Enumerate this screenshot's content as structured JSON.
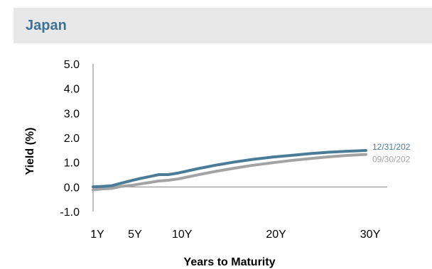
{
  "header": {
    "title": "Japan"
  },
  "colors": {
    "title": "#3e7196",
    "band": "#e8e8e8"
  },
  "chart_data": {
    "type": "line",
    "xlabel": "Years to Maturity",
    "ylabel": "Yield (%)",
    "xlim": [
      1,
      30
    ],
    "ylim": [
      -1,
      5
    ],
    "xticks": [
      {
        "v": 1,
        "label": "1Y"
      },
      {
        "v": 5,
        "label": "5Y"
      },
      {
        "v": 10,
        "label": "10Y"
      },
      {
        "v": 20,
        "label": "20Y"
      },
      {
        "v": 30,
        "label": "30Y"
      }
    ],
    "yticks": [
      {
        "v": 5,
        "label": "5.0"
      },
      {
        "v": 4,
        "label": "4.0"
      },
      {
        "v": 3,
        "label": "3.0"
      },
      {
        "v": 2,
        "label": "2.0"
      },
      {
        "v": 1,
        "label": "1.0"
      },
      {
        "v": 0,
        "label": "0.0"
      },
      {
        "v": -1,
        "label": "-1.0"
      }
    ],
    "series": [
      {
        "name": "12/31/202",
        "color": "#4a7c98",
        "points": [
          [
            1,
            0.0
          ],
          [
            2,
            0.02
          ],
          [
            3,
            0.05
          ],
          [
            4,
            0.15
          ],
          [
            5,
            0.25
          ],
          [
            6,
            0.34
          ],
          [
            7,
            0.42
          ],
          [
            8,
            0.5
          ],
          [
            9,
            0.5
          ],
          [
            10,
            0.56
          ],
          [
            12,
            0.73
          ],
          [
            14,
            0.88
          ],
          [
            16,
            1.01
          ],
          [
            18,
            1.12
          ],
          [
            20,
            1.21
          ],
          [
            22,
            1.28
          ],
          [
            24,
            1.35
          ],
          [
            26,
            1.41
          ],
          [
            28,
            1.45
          ],
          [
            30,
            1.48
          ]
        ]
      },
      {
        "name": "09/30/202",
        "color": "#a3a3a3",
        "points": [
          [
            1,
            -0.12
          ],
          [
            2,
            -0.08
          ],
          [
            3,
            -0.06
          ],
          [
            4,
            0.02
          ],
          [
            5,
            0.06
          ],
          [
            6,
            0.12
          ],
          [
            7,
            0.18
          ],
          [
            8,
            0.24
          ],
          [
            9,
            0.27
          ],
          [
            10,
            0.32
          ],
          [
            12,
            0.48
          ],
          [
            14,
            0.63
          ],
          [
            16,
            0.76
          ],
          [
            18,
            0.88
          ],
          [
            20,
            0.98
          ],
          [
            22,
            1.07
          ],
          [
            24,
            1.15
          ],
          [
            26,
            1.22
          ],
          [
            28,
            1.28
          ],
          [
            30,
            1.32
          ]
        ]
      }
    ]
  }
}
